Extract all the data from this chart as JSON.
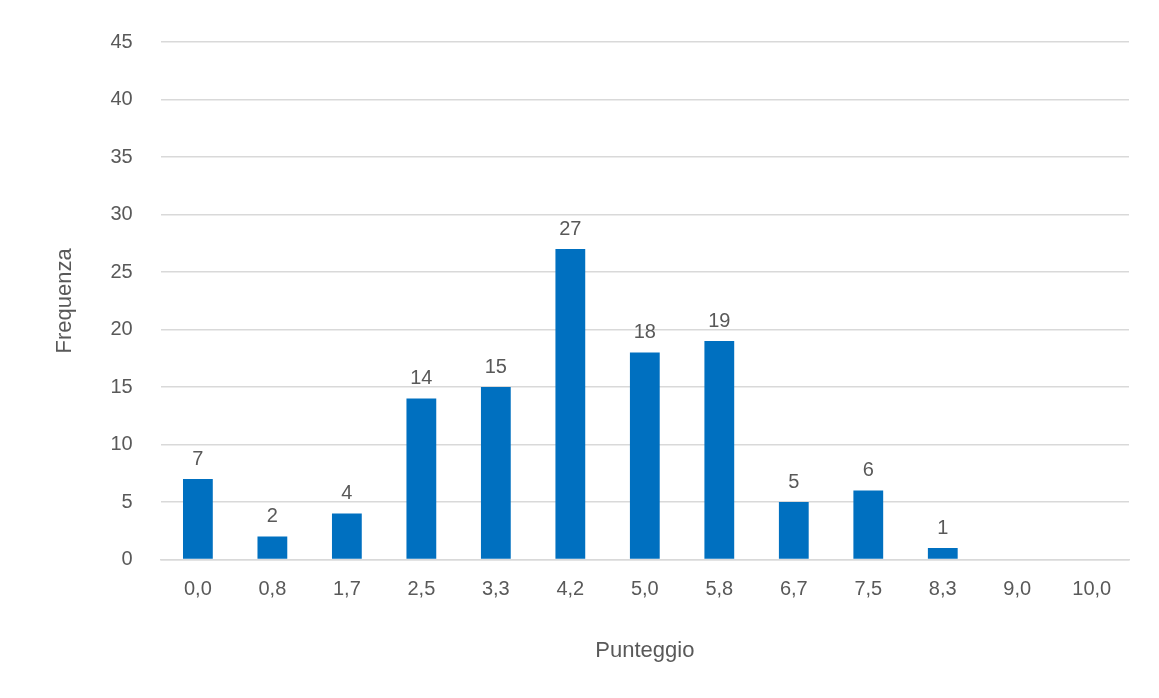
{
  "chart_data": {
    "type": "bar",
    "xlabel": "Punteggio",
    "ylabel": "Frequenza",
    "categories": [
      "0,0",
      "0,8",
      "1,7",
      "2,5",
      "3,3",
      "4,2",
      "5,0",
      "5,8",
      "6,7",
      "7,5",
      "8,3",
      "9,0",
      "10,0"
    ],
    "values": [
      7,
      2,
      4,
      14,
      15,
      27,
      18,
      19,
      5,
      6,
      1,
      0,
      0
    ],
    "value_labels": [
      "7",
      "2",
      "4",
      "14",
      "15",
      "27",
      "18",
      "19",
      "5",
      "6",
      "1",
      null,
      null
    ],
    "color": "#0070c0",
    "ylim": [
      0,
      45
    ],
    "yticks": [
      0,
      5,
      10,
      15,
      20,
      25,
      30,
      35,
      40,
      45
    ],
    "grid": "y",
    "legend": false
  }
}
